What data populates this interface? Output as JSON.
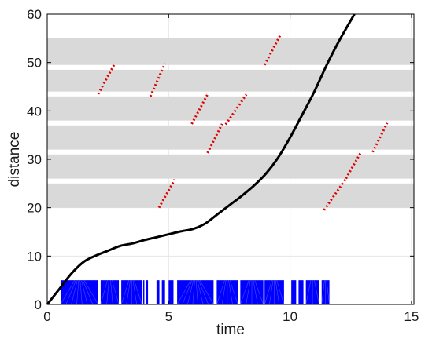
{
  "chart_data": {
    "type": "line",
    "xlabel": "time",
    "ylabel": "distance",
    "xlim": [
      0,
      15.1
    ],
    "ylim": [
      0,
      60
    ],
    "xticks": [
      0,
      5,
      10,
      15
    ],
    "yticks": [
      0,
      10,
      20,
      30,
      40,
      50,
      60
    ],
    "grid": true,
    "bands": [
      {
        "y0": 20.0,
        "y1": 25.0
      },
      {
        "y0": 26.0,
        "y1": 31.0
      },
      {
        "y0": 32.0,
        "y1": 37.0
      },
      {
        "y0": 38.0,
        "y1": 43.0
      },
      {
        "y0": 44.0,
        "y1": 48.5
      },
      {
        "y0": 49.5,
        "y1": 55.0
      }
    ],
    "trajectory": {
      "color": "#000000",
      "x": [
        0,
        0.5,
        1.0,
        1.5,
        2.0,
        2.5,
        3.0,
        3.5,
        4.0,
        4.5,
        5.0,
        5.5,
        6.0,
        6.5,
        7.0,
        7.5,
        8.0,
        8.5,
        9.0,
        9.5,
        10.0,
        10.5,
        11.0,
        11.5,
        12.0,
        12.65
      ],
      "y": [
        0,
        3.2,
        6.4,
        8.8,
        10.1,
        11.1,
        12.1,
        12.6,
        13.3,
        13.9,
        14.5,
        15.1,
        15.6,
        16.7,
        18.6,
        20.5,
        22.4,
        24.5,
        27.0,
        30.3,
        34.5,
        39.2,
        44.0,
        49.4,
        54.3,
        60.0
      ]
    },
    "red_segments": {
      "color": "#e00000",
      "lines": [
        {
          "x0": 2.1,
          "y0": 43.5,
          "x1": 2.75,
          "y1": 49.5
        },
        {
          "x0": 4.25,
          "y0": 43.0,
          "x1": 4.85,
          "y1": 49.8
        },
        {
          "x0": 5.95,
          "y0": 37.3,
          "x1": 6.6,
          "y1": 43.4
        },
        {
          "x0": 6.6,
          "y0": 31.3,
          "x1": 7.2,
          "y1": 37.3
        },
        {
          "x0": 7.35,
          "y0": 37.2,
          "x1": 8.2,
          "y1": 43.4
        },
        {
          "x0": 8.95,
          "y0": 49.5,
          "x1": 9.6,
          "y1": 55.7
        },
        {
          "x0": 4.6,
          "y0": 20.0,
          "x1": 5.25,
          "y1": 25.8
        },
        {
          "x0": 11.4,
          "y0": 19.5,
          "x1": 12.3,
          "y1": 26.0
        },
        {
          "x0": 12.3,
          "y0": 26.0,
          "x1": 12.9,
          "y1": 31.3
        },
        {
          "x0": 13.4,
          "y0": 31.5,
          "x1": 14.0,
          "y1": 37.5
        }
      ]
    },
    "blue_blocks": {
      "color": "#0000ff",
      "y0": 0,
      "y1": 5.0,
      "blocks": [
        [
          0.55,
          2.1
        ],
        [
          2.2,
          2.95
        ],
        [
          3.05,
          3.9
        ],
        [
          3.95,
          4.0
        ],
        [
          4.05,
          4.15
        ],
        [
          4.5,
          4.62
        ],
        [
          4.72,
          4.85
        ],
        [
          5.0,
          5.2
        ],
        [
          5.35,
          6.85
        ],
        [
          6.98,
          7.85
        ],
        [
          7.95,
          8.9
        ],
        [
          8.95,
          9.75
        ],
        [
          10.05,
          10.25
        ],
        [
          10.35,
          10.55
        ],
        [
          10.65,
          11.2
        ],
        [
          11.3,
          11.62
        ]
      ]
    }
  }
}
